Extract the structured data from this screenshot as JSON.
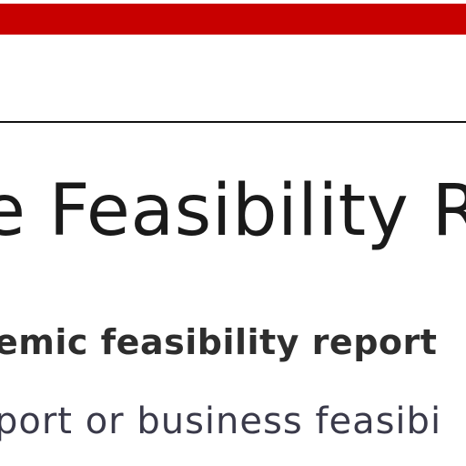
{
  "header": {
    "accent_color": "#c80000"
  },
  "main": {
    "title": "e Feasibility R",
    "subtitle": "emic feasibility report",
    "body_line": "port  or business feasibi"
  }
}
